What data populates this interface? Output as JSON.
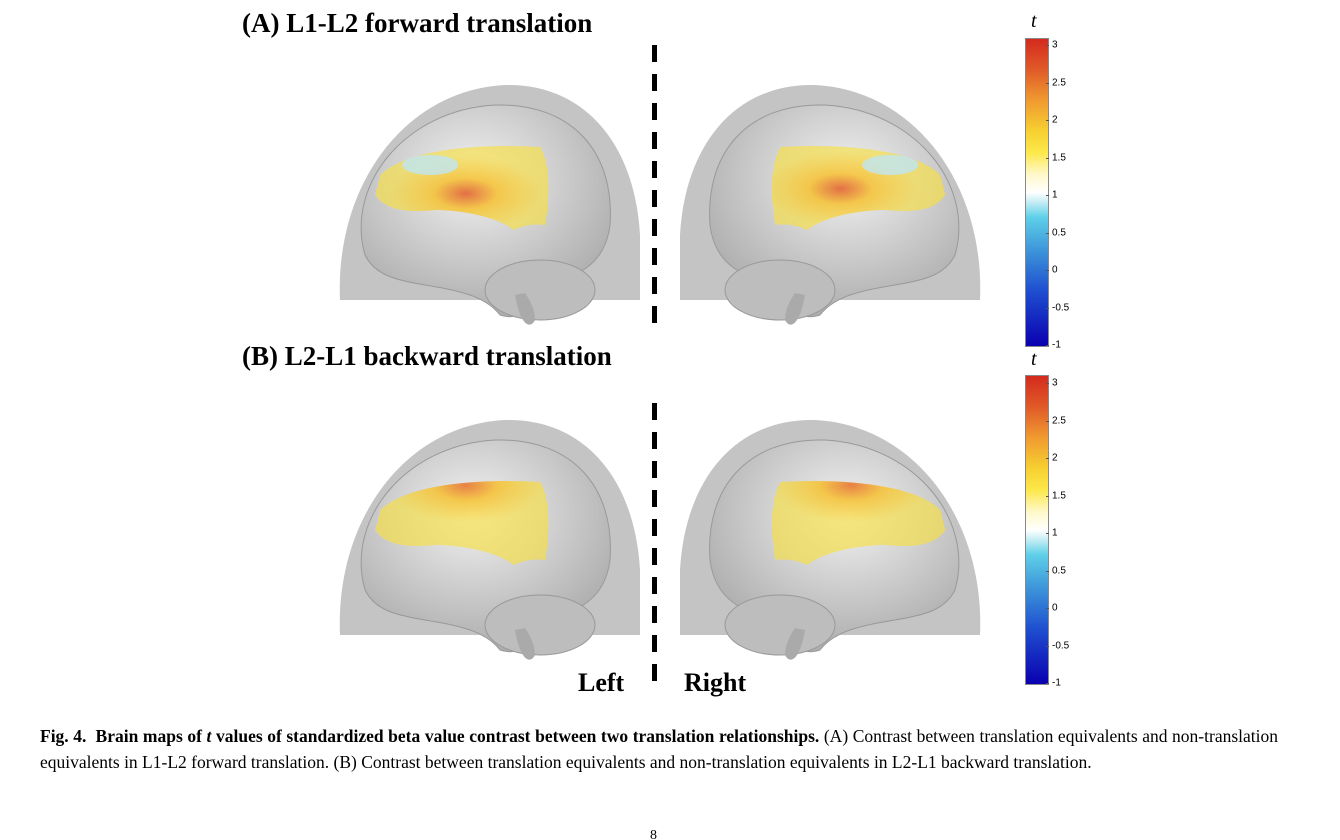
{
  "panels": [
    {
      "title": "(A) L1-L2 forward translation"
    },
    {
      "title": "(B) L2-L1 backward translation"
    }
  ],
  "hemisphere_labels": {
    "left": "Left",
    "right": "Right"
  },
  "colorbar": {
    "label": "t",
    "ticks": [
      "3",
      "2.5",
      "2",
      "1.5",
      "1",
      "0.5",
      "0",
      "-0.5",
      "-1"
    ],
    "range": [
      -1,
      3
    ],
    "colors": {
      "min": "#0a00b0",
      "zero": "#3a8fd8",
      "one": "#ffffff",
      "two": "#fde84a",
      "max": "#d42a1e"
    }
  },
  "caption": {
    "fig": "Fig. 4.",
    "bold_pre": "Brain maps of ",
    "bold_italic": "t",
    "bold_post": " values of standardized beta value contrast between two translation relationships.",
    "body": " (A) Contrast between translation equivalents and non-translation equivalents in L1-L2 forward translation. (B) Contrast between translation equivalents and non-translation equivalents in L2-L1 backward translation."
  },
  "page_number": "8"
}
